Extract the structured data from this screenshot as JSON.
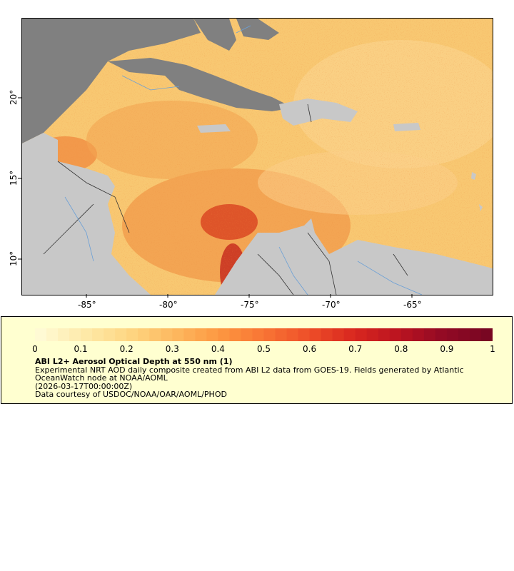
{
  "map": {
    "type": "raster-map",
    "variable": "Aerosol Optical Depth at 550 nm",
    "lon_range": [
      -89,
      -60
    ],
    "lat_range": [
      8,
      25
    ],
    "lon_ticks": [
      "-85°",
      "-80°",
      "-75°",
      "-70°",
      "-65°"
    ],
    "lon_tick_values": [
      -85,
      -80,
      -75,
      -70,
      -65
    ],
    "lat_ticks": [
      "20°",
      "15°",
      "10°"
    ],
    "lat_tick_values": [
      20,
      15,
      10
    ],
    "land_color": "#c8c8c8",
    "nodata_land_color": "#808080",
    "river_color": "#6a9fd6",
    "border_color": "#333333"
  },
  "colorbar": {
    "min": 0,
    "max": 1,
    "labels": [
      "0",
      "0.1",
      "0.2",
      "0.3",
      "0.4",
      "0.5",
      "0.6",
      "0.7",
      "0.8",
      "0.9",
      "1"
    ],
    "colors": [
      "#fffad4",
      "#fee9a8",
      "#fed682",
      "#fdb85f",
      "#fd9841",
      "#f87534",
      "#ee4f29",
      "#d9281f",
      "#bb1420",
      "#930a24",
      "#780622"
    ]
  },
  "legend": {
    "title": "ABI L2+ Aerosol Optical Depth at 550 nm (1)",
    "line1": "Experimental NRT AOD daily composite created from ABI L2 data from GOES-19. Fields generated by Atlantic OceanWatch node at NOAA/AOML",
    "line2": "(2026-03-17T00:00:00Z)",
    "line3": "Data courtesy of USDOC/NOAA/OAR/AOML/PHOD"
  }
}
